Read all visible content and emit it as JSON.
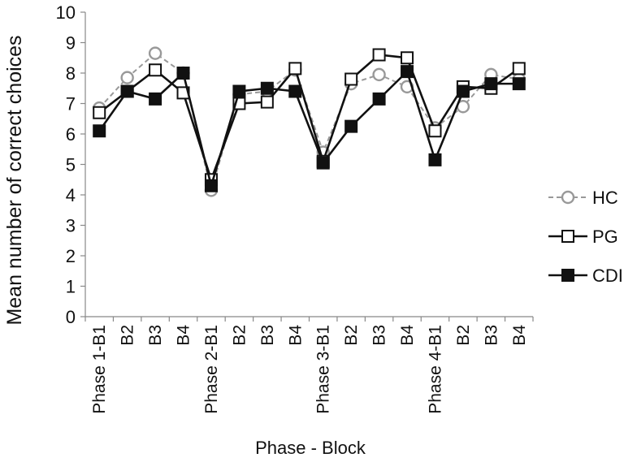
{
  "chart_data": {
    "type": "line",
    "title": "",
    "xlabel": "Phase - Block",
    "ylabel": "Mean number of correct choices",
    "ylim": [
      0,
      10
    ],
    "yticks": [
      0,
      1,
      2,
      3,
      4,
      5,
      6,
      7,
      8,
      9,
      10
    ],
    "grid": false,
    "legend_position": "right",
    "categories": [
      "Phase 1-B1",
      "B2",
      "B3",
      "B4",
      "Phase 2-B1",
      "B2",
      "B3",
      "B4",
      "Phase 3-B1",
      "B2",
      "B3",
      "B4",
      "Phase 4-B1",
      "B2",
      "B3",
      "B4"
    ],
    "series": [
      {
        "name": "HC",
        "marker": "open-circle",
        "line": "dashed",
        "color": "#999999",
        "values": [
          6.85,
          7.85,
          8.65,
          8.0,
          4.15,
          7.3,
          7.4,
          8.1,
          5.4,
          7.65,
          7.95,
          7.55,
          6.2,
          6.9,
          7.95,
          7.8
        ]
      },
      {
        "name": "PG",
        "marker": "open-square",
        "line": "solid",
        "color": "#111111",
        "values": [
          6.7,
          7.4,
          8.1,
          7.35,
          4.5,
          7.0,
          7.05,
          8.15,
          5.1,
          7.8,
          8.6,
          8.5,
          6.1,
          7.55,
          7.5,
          8.15
        ]
      },
      {
        "name": "CDI",
        "marker": "filled-square",
        "line": "solid",
        "color": "#111111",
        "values": [
          6.1,
          7.4,
          7.15,
          8.0,
          4.3,
          7.4,
          7.5,
          7.4,
          5.05,
          6.25,
          7.15,
          8.05,
          5.15,
          7.4,
          7.65,
          7.65
        ]
      }
    ]
  }
}
